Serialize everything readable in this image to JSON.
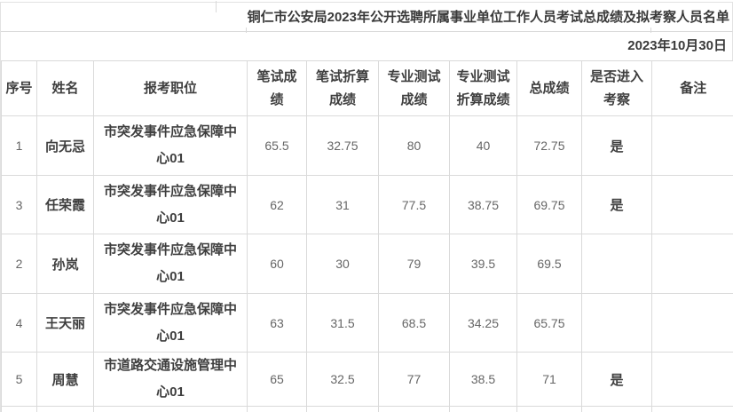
{
  "sheet": {
    "title": "铜仁市公安局2023年公开选聘所属事业单位工作人员考试总成绩及拟考察人员名单",
    "date": "2023年10月30日",
    "columns": [
      "序号",
      "姓名",
      "报考职位",
      "笔试成绩",
      "笔试折算\n成绩",
      "专业测试\n成绩",
      "专业测试\n折算成绩",
      "总成绩",
      "是否进入\n考察",
      "备注"
    ],
    "rows": [
      {
        "no": "1",
        "name": "向无忌",
        "position": "市突发事件应急保障中心01",
        "written": "65.5",
        "written_conv": "32.75",
        "prof": "80",
        "prof_conv": "40",
        "total": "72.75",
        "enter": "是",
        "remark": ""
      },
      {
        "no": "3",
        "name": "任荣霞",
        "position": "市突发事件应急保障中心01",
        "written": "62",
        "written_conv": "31",
        "prof": "77.5",
        "prof_conv": "38.75",
        "total": "69.75",
        "enter": "是",
        "remark": ""
      },
      {
        "no": "2",
        "name": "孙岚",
        "position": "市突发事件应急保障中心01",
        "written": "60",
        "written_conv": "30",
        "prof": "79",
        "prof_conv": "39.5",
        "total": "69.5",
        "enter": "",
        "remark": ""
      },
      {
        "no": "4",
        "name": "王天丽",
        "position": "市突发事件应急保障中心01",
        "written": "63",
        "written_conv": "31.5",
        "prof": "68.5",
        "prof_conv": "34.25",
        "total": "65.75",
        "enter": "",
        "remark": ""
      },
      {
        "no": "5",
        "name": "周慧",
        "position": "市道路交通设施管理中心01",
        "written": "65",
        "written_conv": "32.5",
        "prof": "77",
        "prof_conv": "38.5",
        "total": "71",
        "enter": "是",
        "remark": ""
      }
    ],
    "colors": {
      "grid": "#dadada",
      "heading_text": "#3f3f3f",
      "number_text": "#666666",
      "background": "#ffffff"
    }
  }
}
